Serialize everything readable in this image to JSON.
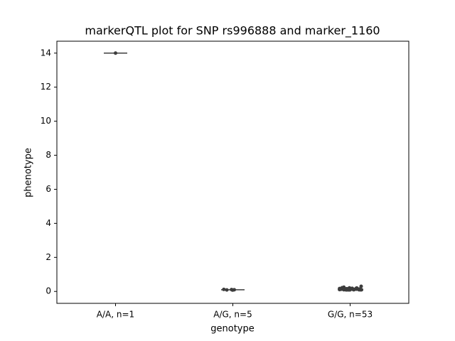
{
  "chart_data": {
    "type": "strip",
    "title": "markerQTL plot for SNP rs996888 and marker_1160",
    "x_label": "genotype",
    "y_label": "phenotype",
    "categories": [
      "A/A, n=1",
      "A/G, n=5",
      "G/G, n=53"
    ],
    "values": [
      [
        14.0
      ],
      [
        0.08,
        0.1,
        0.12,
        0.09,
        0.11
      ],
      [
        0.12,
        0.15,
        0.1,
        0.18,
        0.09,
        0.14,
        0.2,
        0.11,
        0.13,
        0.16,
        0.1,
        0.12,
        0.22,
        0.15,
        0.09,
        0.14,
        0.17,
        0.11,
        0.3,
        0.13,
        0.12,
        0.1,
        0.19,
        0.14,
        0.16,
        0.11,
        0.13,
        0.15,
        0.1,
        0.12,
        0.25,
        0.14,
        0.09,
        0.17,
        0.13,
        0.11,
        0.16,
        0.12,
        0.1,
        0.15,
        0.14,
        0.21,
        0.12,
        0.13,
        0.11,
        0.18,
        0.1,
        0.14,
        0.12,
        0.16,
        0.13,
        0.11,
        0.15
      ]
    ],
    "medians": [
      14.0,
      0.1,
      0.13
    ],
    "color": "#3d3d3d",
    "ylim": [
      -0.7,
      14.7
    ],
    "yticks": [
      0,
      2,
      4,
      6,
      8,
      10,
      12,
      14
    ]
  }
}
